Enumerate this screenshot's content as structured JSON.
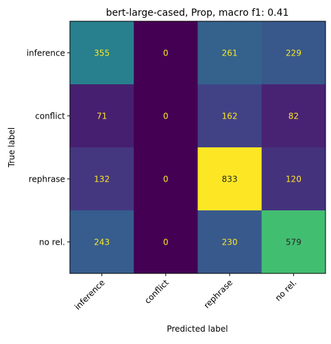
{
  "chart_data": {
    "type": "heatmap",
    "title": "bert-large-cased, Prop, macro f1: 0.41",
    "xlabel": "Predicted label",
    "ylabel": "True label",
    "x_categories": [
      "inference",
      "conflict",
      "rephrase",
      "no rel."
    ],
    "y_categories": [
      "inference",
      "conflict",
      "rephrase",
      "no rel."
    ],
    "matrix": [
      [
        355,
        0,
        261,
        229
      ],
      [
        71,
        0,
        162,
        82
      ],
      [
        132,
        0,
        833,
        120
      ],
      [
        243,
        0,
        230,
        579
      ]
    ],
    "colormap": "viridis",
    "value_range": [
      0,
      833
    ],
    "text_color_light": "#fde725",
    "text_color_dark": "#262626"
  }
}
